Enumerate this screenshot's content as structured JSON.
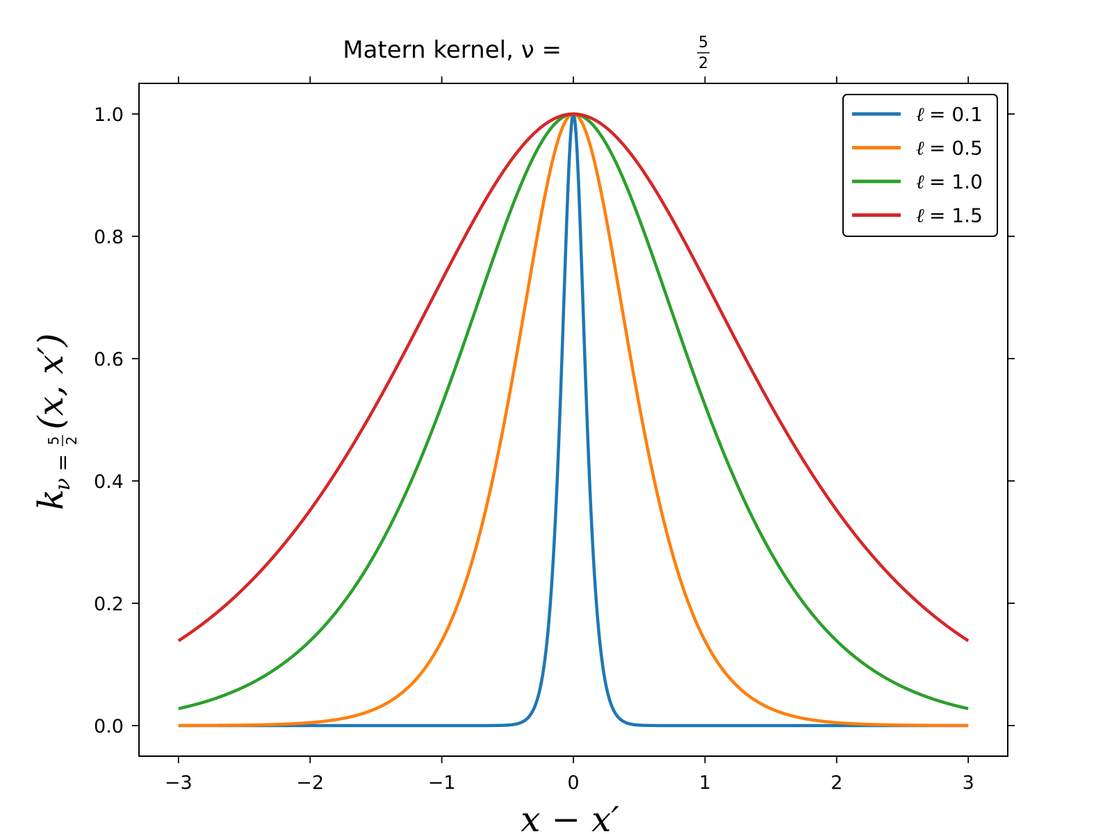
{
  "chart_data": {
    "type": "line",
    "title": "Matern kernel, ν = 5/2",
    "title_main": "Matern kernel, ν =",
    "title_frac": {
      "num": "5",
      "den": "2"
    },
    "xlabel": "x − x′",
    "ylabel": "k_{ν=5/2}(x, x′)",
    "ylabel_parts": {
      "k": "k",
      "sub": "ν =",
      "frac_num": "5",
      "frac_den": "2",
      "args": "(x, x′)"
    },
    "xlim": [
      -3.3,
      3.3
    ],
    "ylim": [
      -0.05,
      1.05
    ],
    "x_range": [
      -3,
      3
    ],
    "x_ticks": [
      -3,
      -2,
      -1,
      0,
      1,
      2,
      3
    ],
    "x_tick_labels": [
      "−3",
      "−2",
      "−1",
      "0",
      "1",
      "2",
      "3"
    ],
    "y_ticks": [
      0.0,
      0.2,
      0.4,
      0.6,
      0.8,
      1.0
    ],
    "y_tick_labels": [
      "0.0",
      "0.2",
      "0.4",
      "0.6",
      "0.8",
      "1.0"
    ],
    "grid": false,
    "legend_position": "top-right",
    "series": [
      {
        "name": "ℓ = 0.1",
        "legend_symbol": "ℓ",
        "legend_value": "= 0.1",
        "lengthscale": 0.1,
        "color": "#1f77b4"
      },
      {
        "name": "ℓ = 0.5",
        "legend_symbol": "ℓ",
        "legend_value": "= 0.5",
        "lengthscale": 0.5,
        "color": "#ff7f0e"
      },
      {
        "name": "ℓ = 1.0",
        "legend_symbol": "ℓ",
        "legend_value": "= 1.0",
        "lengthscale": 1.0,
        "color": "#2ca02c"
      },
      {
        "name": "ℓ = 1.5",
        "legend_symbol": "ℓ",
        "legend_value": "= 1.5",
        "lengthscale": 1.5,
        "color": "#d62728"
      }
    ]
  }
}
